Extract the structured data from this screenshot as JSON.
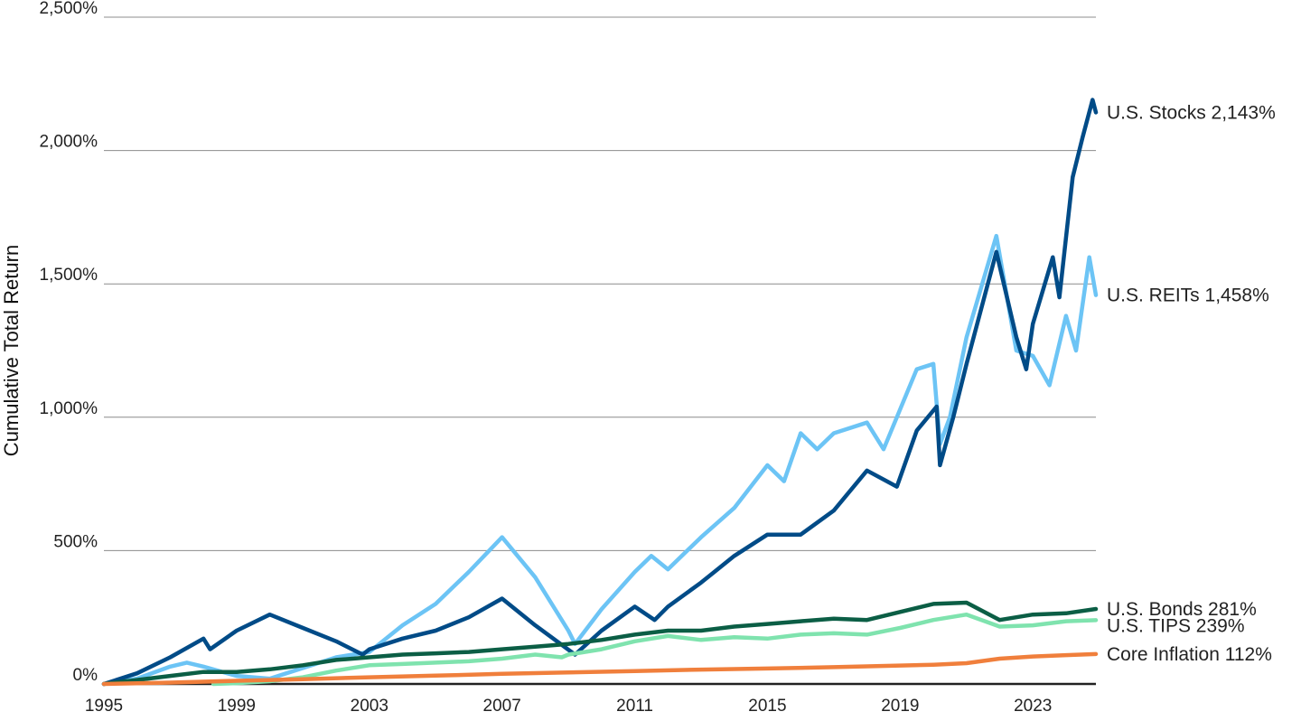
{
  "chart_data": {
    "type": "line",
    "ylabel": "Cumulative Total Return",
    "xlabel": "",
    "xlim": [
      1995,
      2024.9
    ],
    "ylim": [
      0,
      2500
    ],
    "x_ticks": [
      1995,
      1999,
      2003,
      2007,
      2011,
      2015,
      2019,
      2023
    ],
    "x_tick_labels": [
      "1995",
      "1999",
      "2003",
      "2007",
      "2011",
      "2015",
      "2019",
      "2023"
    ],
    "y_ticks": [
      0,
      500,
      1000,
      1500,
      2000,
      2500
    ],
    "y_tick_labels": [
      "0%",
      "500%",
      "1,000%",
      "1,500%",
      "2,000%",
      "2,500%"
    ],
    "grid": "horizontal",
    "legend": "end-of-line labels",
    "series": [
      {
        "name": "U.S. REITs",
        "end_label": "U.S. REITs 1,458%",
        "color": "#6cc4f5",
        "points": [
          [
            1995,
            0
          ],
          [
            1996,
            20
          ],
          [
            1997,
            65
          ],
          [
            1997.5,
            80
          ],
          [
            1998,
            65
          ],
          [
            1999,
            30
          ],
          [
            2000,
            20
          ],
          [
            2001,
            60
          ],
          [
            2002,
            100
          ],
          [
            2003,
            120
          ],
          [
            2004,
            220
          ],
          [
            2005,
            300
          ],
          [
            2006,
            420
          ],
          [
            2007,
            550
          ],
          [
            2008,
            400
          ],
          [
            2009.0,
            200
          ],
          [
            2009.2,
            150
          ],
          [
            2010,
            280
          ],
          [
            2011,
            420
          ],
          [
            2011.5,
            480
          ],
          [
            2012,
            430
          ],
          [
            2013,
            550
          ],
          [
            2014,
            660
          ],
          [
            2015,
            820
          ],
          [
            2015.5,
            760
          ],
          [
            2016,
            940
          ],
          [
            2016.5,
            880
          ],
          [
            2017,
            940
          ],
          [
            2018,
            980
          ],
          [
            2018.5,
            880
          ],
          [
            2019.5,
            1180
          ],
          [
            2020,
            1200
          ],
          [
            2020.2,
            900
          ],
          [
            2020.5,
            1000
          ],
          [
            2021,
            1300
          ],
          [
            2021.9,
            1680
          ],
          [
            2022.5,
            1250
          ],
          [
            2023,
            1230
          ],
          [
            2023.5,
            1120
          ],
          [
            2024,
            1380
          ],
          [
            2024.3,
            1250
          ],
          [
            2024.7,
            1600
          ],
          [
            2024.9,
            1458
          ]
        ]
      },
      {
        "name": "U.S. Stocks",
        "end_label": "U.S. Stocks 2,143%",
        "color": "#004b87",
        "points": [
          [
            1995,
            0
          ],
          [
            1996,
            40
          ],
          [
            1997,
            100
          ],
          [
            1998,
            170
          ],
          [
            1998.2,
            130
          ],
          [
            1999,
            200
          ],
          [
            2000,
            260
          ],
          [
            2001,
            210
          ],
          [
            2002,
            160
          ],
          [
            2002.8,
            110
          ],
          [
            2003,
            130
          ],
          [
            2004,
            170
          ],
          [
            2005,
            200
          ],
          [
            2006,
            250
          ],
          [
            2007,
            320
          ],
          [
            2008,
            220
          ],
          [
            2009.2,
            110
          ],
          [
            2010,
            200
          ],
          [
            2011,
            290
          ],
          [
            2011.6,
            240
          ],
          [
            2012,
            290
          ],
          [
            2013,
            380
          ],
          [
            2014,
            480
          ],
          [
            2015,
            560
          ],
          [
            2016,
            560
          ],
          [
            2017,
            650
          ],
          [
            2018,
            800
          ],
          [
            2018.9,
            740
          ],
          [
            2019.5,
            950
          ],
          [
            2020.1,
            1040
          ],
          [
            2020.2,
            820
          ],
          [
            2020.6,
            1000
          ],
          [
            2021,
            1200
          ],
          [
            2021.9,
            1620
          ],
          [
            2022.5,
            1300
          ],
          [
            2022.8,
            1180
          ],
          [
            2023,
            1350
          ],
          [
            2023.6,
            1600
          ],
          [
            2023.8,
            1450
          ],
          [
            2024.2,
            1900
          ],
          [
            2024.5,
            2050
          ],
          [
            2024.8,
            2190
          ],
          [
            2024.9,
            2143
          ]
        ]
      },
      {
        "name": "U.S. Bonds",
        "end_label": "U.S. Bonds 281%",
        "color": "#0b5e45",
        "points": [
          [
            1995,
            0
          ],
          [
            1996,
            15
          ],
          [
            1997,
            30
          ],
          [
            1998,
            45
          ],
          [
            1999,
            45
          ],
          [
            2000,
            55
          ],
          [
            2001,
            70
          ],
          [
            2002,
            90
          ],
          [
            2003,
            100
          ],
          [
            2004,
            110
          ],
          [
            2005,
            115
          ],
          [
            2006,
            120
          ],
          [
            2007,
            130
          ],
          [
            2008,
            140
          ],
          [
            2009,
            150
          ],
          [
            2010,
            165
          ],
          [
            2011,
            185
          ],
          [
            2012,
            200
          ],
          [
            2013,
            200
          ],
          [
            2014,
            215
          ],
          [
            2015,
            225
          ],
          [
            2016,
            235
          ],
          [
            2017,
            245
          ],
          [
            2018,
            240
          ],
          [
            2019,
            270
          ],
          [
            2020,
            300
          ],
          [
            2021,
            305
          ],
          [
            2022,
            240
          ],
          [
            2023,
            260
          ],
          [
            2024,
            265
          ],
          [
            2024.9,
            281
          ]
        ]
      },
      {
        "name": "U.S. TIPS",
        "end_label": "U.S. TIPS 239%",
        "color": "#7fe3ae",
        "points": [
          [
            1998.3,
            0
          ],
          [
            1999,
            3
          ],
          [
            2000,
            10
          ],
          [
            2001,
            25
          ],
          [
            2002,
            50
          ],
          [
            2003,
            70
          ],
          [
            2004,
            75
          ],
          [
            2005,
            80
          ],
          [
            2006,
            85
          ],
          [
            2007,
            95
          ],
          [
            2008,
            110
          ],
          [
            2008.8,
            100
          ],
          [
            2009,
            110
          ],
          [
            2010,
            130
          ],
          [
            2011,
            160
          ],
          [
            2012,
            180
          ],
          [
            2013,
            165
          ],
          [
            2014,
            175
          ],
          [
            2015,
            170
          ],
          [
            2016,
            185
          ],
          [
            2017,
            190
          ],
          [
            2018,
            185
          ],
          [
            2019,
            210
          ],
          [
            2020,
            240
          ],
          [
            2021,
            260
          ],
          [
            2022,
            215
          ],
          [
            2023,
            220
          ],
          [
            2024,
            235
          ],
          [
            2024.9,
            239
          ]
        ]
      },
      {
        "name": "Core Inflation",
        "end_label": "Core Inflation 112%",
        "color": "#f07f3c",
        "points": [
          [
            1995,
            0
          ],
          [
            1997,
            5
          ],
          [
            1999,
            12
          ],
          [
            2001,
            18
          ],
          [
            2003,
            25
          ],
          [
            2005,
            31
          ],
          [
            2007,
            38
          ],
          [
            2009,
            43
          ],
          [
            2011,
            48
          ],
          [
            2013,
            54
          ],
          [
            2015,
            58
          ],
          [
            2017,
            63
          ],
          [
            2019,
            69
          ],
          [
            2020,
            72
          ],
          [
            2021,
            78
          ],
          [
            2022,
            95
          ],
          [
            2023,
            103
          ],
          [
            2024,
            108
          ],
          [
            2024.9,
            112
          ]
        ]
      }
    ]
  }
}
